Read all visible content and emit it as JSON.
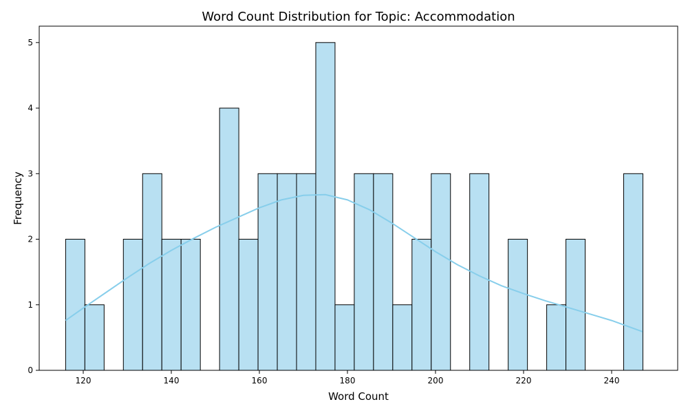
{
  "chart_data": {
    "type": "bar",
    "title": "Word Count Distribution for Topic: Accommodation",
    "xlabel": "Word Count",
    "ylabel": "Frequency",
    "xlim": [
      110.0,
      255.0
    ],
    "ylim": [
      0,
      5.25
    ],
    "xticks": [
      120,
      140,
      160,
      180,
      200,
      220,
      240
    ],
    "yticks": [
      0,
      1,
      2,
      3,
      4,
      5
    ],
    "bin_start": 116.0,
    "bin_width": 4.37,
    "counts": [
      2,
      1,
      0,
      2,
      3,
      2,
      2,
      0,
      4,
      2,
      3,
      3,
      3,
      5,
      1,
      3,
      3,
      1,
      2,
      3,
      0,
      3,
      0,
      2,
      0,
      1,
      2,
      0,
      0,
      3
    ],
    "bar_color": "#b8e0f2",
    "edge_color": "#000000",
    "kde": {
      "color": "#87ceeb",
      "x": [
        116,
        120,
        125,
        130,
        135,
        140,
        145,
        150,
        155,
        160,
        165,
        170,
        175,
        180,
        185,
        190,
        195,
        200,
        205,
        210,
        215,
        220,
        225,
        230,
        235,
        240,
        247
      ],
      "y": [
        0.76,
        0.95,
        1.18,
        1.41,
        1.63,
        1.83,
        2.01,
        2.18,
        2.33,
        2.48,
        2.6,
        2.67,
        2.68,
        2.6,
        2.45,
        2.25,
        2.03,
        1.81,
        1.61,
        1.44,
        1.29,
        1.17,
        1.06,
        0.96,
        0.86,
        0.76,
        0.59
      ]
    },
    "grid": false,
    "legend": "none"
  }
}
